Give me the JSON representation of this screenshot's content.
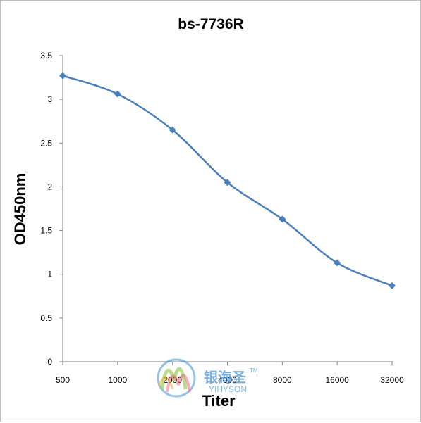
{
  "chart_data": {
    "type": "line",
    "title": "bs-7736R",
    "xlabel": "Titer",
    "ylabel": "OD450nm",
    "categories": [
      "500",
      "1000",
      "2000",
      "4000",
      "8000",
      "16000",
      "32000"
    ],
    "series": [
      {
        "values": [
          3.27,
          3.06,
          2.65,
          2.05,
          1.63,
          1.13,
          0.87
        ],
        "color": "#4a7ebb"
      }
    ],
    "ylim": [
      0,
      3.5
    ],
    "yticks": [
      "0",
      "0.5",
      "1",
      "1.5",
      "2",
      "2.5",
      "3",
      "3.5"
    ],
    "grid": false,
    "legend": "none"
  },
  "watermark": {
    "cn_text": "银海圣",
    "en_text": "YIHYSON",
    "tm": "TM",
    "logo_colors": [
      "#2f86c8",
      "#8dc63f",
      "#e94e77",
      "#f7a823"
    ]
  }
}
